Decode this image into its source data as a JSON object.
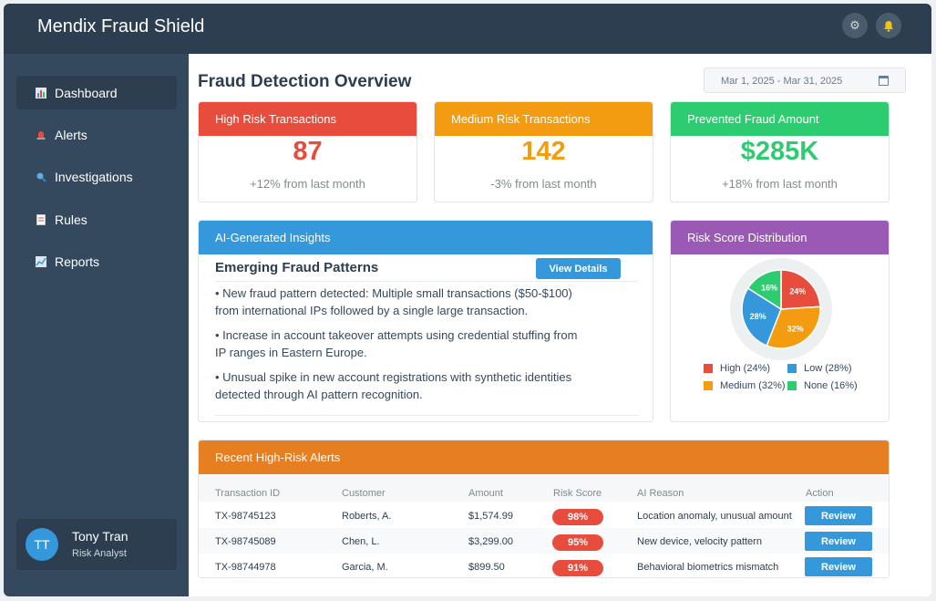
{
  "app": {
    "title": "Mendix Fraud Shield"
  },
  "header": {
    "settings_icon": "gear-icon",
    "notifications_icon": "bell-icon"
  },
  "sidebar": {
    "items": [
      {
        "label": "Dashboard",
        "icon": "bar-chart-icon",
        "active": true
      },
      {
        "label": "Alerts",
        "icon": "siren-icon"
      },
      {
        "label": "Investigations",
        "icon": "magnifier-icon"
      },
      {
        "label": "Rules",
        "icon": "document-icon"
      },
      {
        "label": "Reports",
        "icon": "line-chart-icon"
      }
    ]
  },
  "user": {
    "initials": "TT",
    "name": "Tony Tran",
    "role": "Risk Analyst"
  },
  "main": {
    "title": "Fraud Detection Overview",
    "date_range": "Mar 1, 2025 - Mar 31, 2025"
  },
  "stats": [
    {
      "title": "High Risk Transactions",
      "value": "87",
      "change": "+12% from last month",
      "color": "#e74c3c"
    },
    {
      "title": "Medium Risk Transactions",
      "value": "142",
      "change": "-3% from last month",
      "color": "#f39c12"
    },
    {
      "title": "Prevented Fraud Amount",
      "value": "$285K",
      "change": "+18% from last month",
      "color": "#2ecc71"
    }
  ],
  "insights": {
    "header": "AI-Generated Insights",
    "subtitle": "Emerging Fraud Patterns",
    "button": "View Details",
    "bullets": [
      "• New fraud pattern detected: Multiple small transactions ($50-$100) from international IPs followed by a single large transaction.",
      "• Increase in account takeover attempts using credential stuffing from IP ranges in Eastern Europe.",
      "• Unusual spike in new account registrations with synthetic identities detected through AI pattern recognition."
    ]
  },
  "risk_distribution": {
    "header": "Risk Score Distribution",
    "legend": [
      "High (24%)",
      "Low (28%)",
      "Medium (32%)",
      "None (16%)"
    ]
  },
  "chart_data": {
    "type": "pie",
    "title": "Risk Score Distribution",
    "slices": [
      {
        "label": "High",
        "value": 24,
        "display": "24%",
        "color": "#e74c3c"
      },
      {
        "label": "Medium",
        "value": 32,
        "display": "32%",
        "color": "#f39c12"
      },
      {
        "label": "Low",
        "value": 28,
        "display": "28%",
        "color": "#3498db"
      },
      {
        "label": "None",
        "value": 16,
        "display": "16%",
        "color": "#2ecc71"
      }
    ],
    "legend_placement": "bottom"
  },
  "alerts": {
    "header": "Recent High-Risk Alerts",
    "columns": [
      "Transaction ID",
      "Customer",
      "Amount",
      "Risk Score",
      "AI Reason",
      "Action"
    ],
    "rows": [
      {
        "id": "TX-98745123",
        "customer": "Roberts, A.",
        "amount": "$1,574.99",
        "score": "98%",
        "reason": "Location anomaly, unusual amount",
        "action": "Review"
      },
      {
        "id": "TX-98745089",
        "customer": "Chen, L.",
        "amount": "$3,299.00",
        "score": "95%",
        "reason": "New device, velocity pattern",
        "action": "Review"
      },
      {
        "id": "TX-98744978",
        "customer": "Garcia, M.",
        "amount": "$899.50",
        "score": "91%",
        "reason": "Behavioral biometrics mismatch",
        "action": "Review"
      }
    ]
  }
}
